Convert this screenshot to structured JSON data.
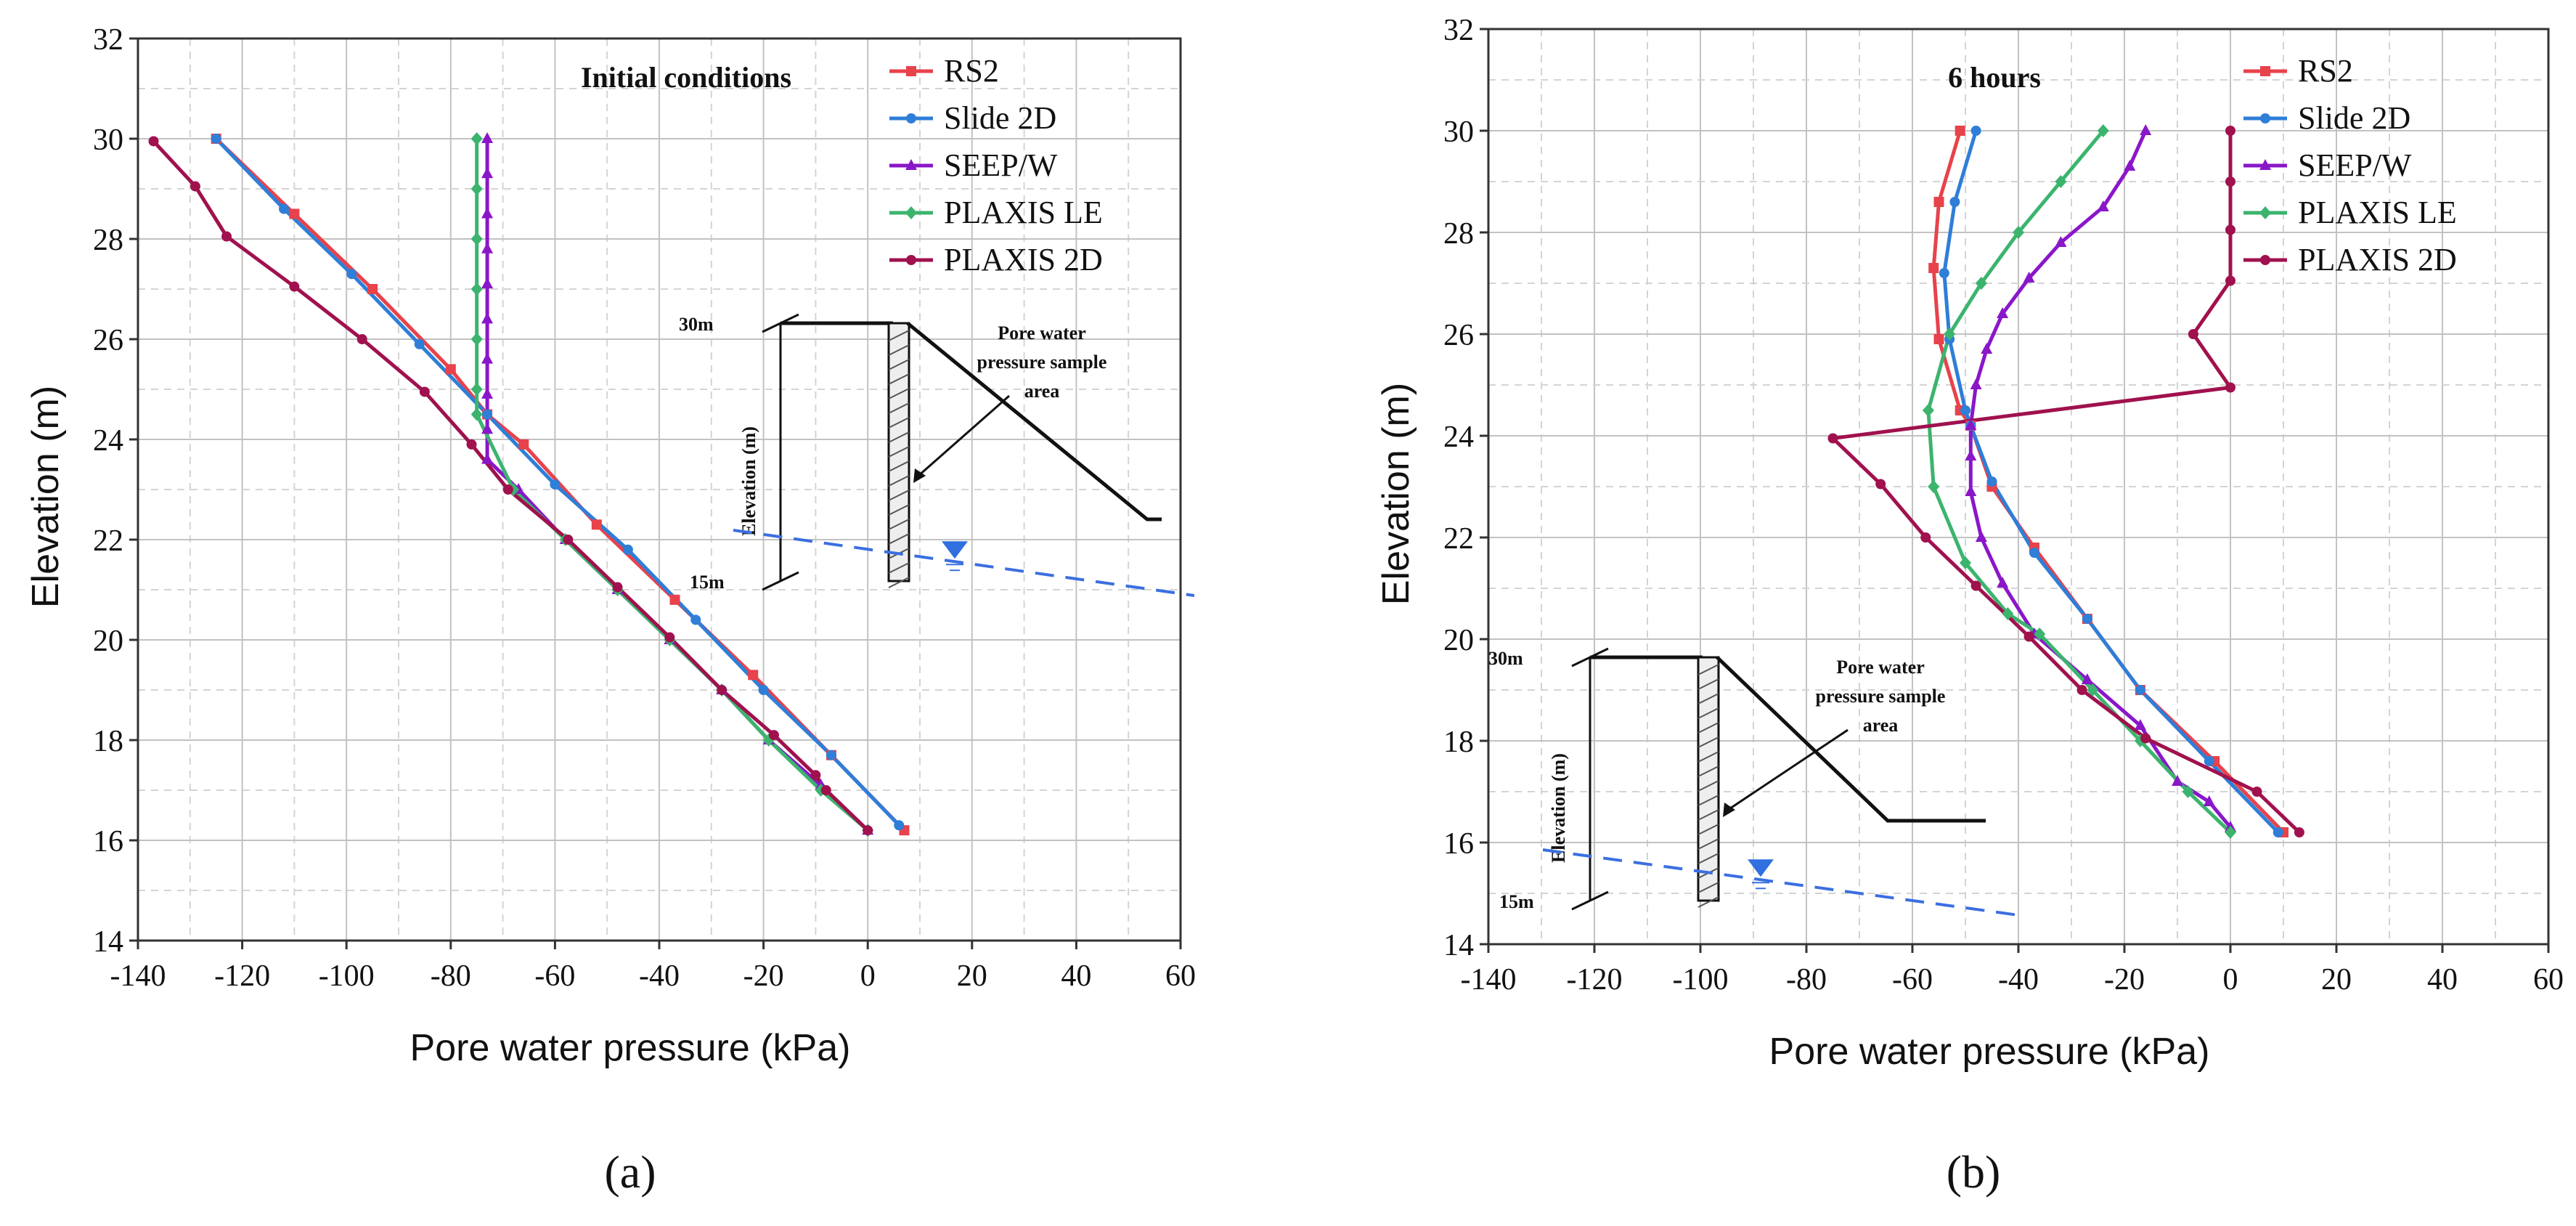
{
  "figure": {
    "panel_a_label": "(a)",
    "panel_b_label": "(b)"
  },
  "inset": {
    "top_label": "30m",
    "bottom_label": "15m",
    "axis_label": "Elevation (m)",
    "annotation_lines": [
      "Pore water",
      "pressure sample",
      "area"
    ]
  },
  "colors": {
    "RS2": "#e8424b",
    "Slide 2D": "#2f7ed8",
    "SEEP/W": "#8a16c9",
    "PLAXIS LE": "#3cb46e",
    "PLAXIS 2D": "#a0114e"
  },
  "chart_data": [
    {
      "type": "line",
      "title": "Initial conditions",
      "xlabel": "Pore water pressure (kPa)",
      "ylabel": "Elevation (m)",
      "xlim": [
        -140,
        60
      ],
      "ylim": [
        14,
        32
      ],
      "xticks": [
        -140,
        -120,
        -100,
        -80,
        -60,
        -40,
        -20,
        0,
        20,
        40,
        60
      ],
      "yticks": [
        14,
        16,
        18,
        20,
        22,
        24,
        26,
        28,
        30,
        32
      ],
      "series": [
        {
          "name": "RS2",
          "marker": "square",
          "color": "#e8424b",
          "points": [
            [
              -125,
              30
            ],
            [
              -110,
              28.5
            ],
            [
              -95,
              27
            ],
            [
              -80,
              25.4
            ],
            [
              -73,
              24.5
            ],
            [
              -66,
              23.9
            ],
            [
              -52,
              22.3
            ],
            [
              -37,
              20.8
            ],
            [
              -22,
              19.3
            ],
            [
              -7,
              17.7
            ],
            [
              7,
              16.2
            ]
          ]
        },
        {
          "name": "Slide 2D",
          "marker": "circle",
          "color": "#2f7ed8",
          "points": [
            [
              -125,
              30
            ],
            [
              -112,
              28.6
            ],
            [
              -99,
              27.3
            ],
            [
              -86,
              25.9
            ],
            [
              -73,
              24.5
            ],
            [
              -60,
              23.1
            ],
            [
              -46,
              21.8
            ],
            [
              -33,
              20.4
            ],
            [
              -20,
              19
            ],
            [
              -7,
              17.7
            ],
            [
              6,
              16.3
            ]
          ]
        },
        {
          "name": "SEEP/W",
          "marker": "triangle",
          "color": "#8a16c9",
          "points": [
            [
              -73,
              30
            ],
            [
              -73,
              29.3
            ],
            [
              -73,
              28.5
            ],
            [
              -73,
              27.8
            ],
            [
              -73,
              27.1
            ],
            [
              -73,
              26.4
            ],
            [
              -73,
              25.6
            ],
            [
              -73,
              24.9
            ],
            [
              -73,
              24.2
            ],
            [
              -73,
              23.6
            ],
            [
              -67,
              23
            ],
            [
              -58,
              22
            ],
            [
              -48,
              21
            ],
            [
              -38,
              20
            ],
            [
              -28,
              19
            ],
            [
              -19,
              18
            ],
            [
              -9,
              17.1
            ],
            [
              0,
              16.2
            ]
          ]
        },
        {
          "name": "PLAXIS LE",
          "marker": "diamond",
          "color": "#3cb46e",
          "points": [
            [
              -75,
              30
            ],
            [
              -75,
              29
            ],
            [
              -75,
              28
            ],
            [
              -75,
              27
            ],
            [
              -75,
              26
            ],
            [
              -75,
              25
            ],
            [
              -75,
              24.5
            ],
            [
              -68,
              23
            ],
            [
              -58,
              22
            ],
            [
              -48,
              21
            ],
            [
              -38,
              20
            ],
            [
              -28,
              19
            ],
            [
              -19,
              18
            ],
            [
              -9,
              17
            ],
            [
              0,
              16.2
            ]
          ]
        },
        {
          "name": "PLAXIS 2D",
          "marker": "circle",
          "color": "#a0114e",
          "points": [
            [
              -137,
              29.95
            ],
            [
              -129,
              29.05
            ],
            [
              -123,
              28.05
            ],
            [
              -110,
              27.05
            ],
            [
              -97,
              26
            ],
            [
              -85,
              24.95
            ],
            [
              -76,
              23.9
            ],
            [
              -69,
              23
            ],
            [
              -57.5,
              22
            ],
            [
              -48,
              21.05
            ],
            [
              -38,
              20.05
            ],
            [
              -28,
              19
            ],
            [
              -18,
              18.1
            ],
            [
              -10,
              17.3
            ],
            [
              -8,
              17
            ],
            [
              0,
              16.2
            ]
          ]
        }
      ]
    },
    {
      "type": "line",
      "title": "6 hours",
      "xlabel": "Pore water pressure (kPa)",
      "ylabel": "Elevation (m)",
      "xlim": [
        -140,
        60
      ],
      "ylim": [
        14,
        32
      ],
      "xticks": [
        -140,
        -120,
        -100,
        -80,
        -60,
        -40,
        -20,
        0,
        20,
        40,
        60
      ],
      "yticks": [
        14,
        16,
        18,
        20,
        22,
        24,
        26,
        28,
        30,
        32
      ],
      "series": [
        {
          "name": "RS2",
          "marker": "square",
          "color": "#e8424b",
          "points": [
            [
              -51,
              30
            ],
            [
              -55,
              28.6
            ],
            [
              -56,
              27.3
            ],
            [
              -55,
              25.9
            ],
            [
              -51,
              24.5
            ],
            [
              -49,
              24.2
            ],
            [
              -45,
              23
            ],
            [
              -37,
              21.8
            ],
            [
              -27,
              20.4
            ],
            [
              -17,
              19
            ],
            [
              -3,
              17.6
            ],
            [
              10,
              16.2
            ]
          ]
        },
        {
          "name": "Slide 2D",
          "marker": "circle",
          "color": "#2f7ed8",
          "points": [
            [
              -48,
              30
            ],
            [
              -52,
              28.6
            ],
            [
              -54,
              27.2
            ],
            [
              -53,
              25.9
            ],
            [
              -50,
              24.5
            ],
            [
              -49,
              24.2
            ],
            [
              -45,
              23.1
            ],
            [
              -37,
              21.7
            ],
            [
              -27,
              20.4
            ],
            [
              -17,
              19
            ],
            [
              -4,
              17.6
            ],
            [
              9,
              16.2
            ]
          ]
        },
        {
          "name": "SEEP/W",
          "marker": "triangle",
          "color": "#8a16c9",
          "points": [
            [
              -16,
              30
            ],
            [
              -19,
              29.3
            ],
            [
              -24,
              28.5
            ],
            [
              -32,
              27.8
            ],
            [
              -38,
              27.1
            ],
            [
              -43,
              26.4
            ],
            [
              -46,
              25.7
            ],
            [
              -48,
              25
            ],
            [
              -49,
              24.2
            ],
            [
              -49,
              23.6
            ],
            [
              -49,
              22.9
            ],
            [
              -47,
              22
            ],
            [
              -43,
              21.1
            ],
            [
              -37,
              20.1
            ],
            [
              -27,
              19.2
            ],
            [
              -17,
              18.3
            ],
            [
              -10,
              17.2
            ],
            [
              -4,
              16.8
            ],
            [
              0,
              16.3
            ]
          ]
        },
        {
          "name": "PLAXIS LE",
          "marker": "diamond",
          "color": "#3cb46e",
          "points": [
            [
              -24,
              30
            ],
            [
              -32,
              29
            ],
            [
              -40,
              28
            ],
            [
              -47,
              27
            ],
            [
              -53,
              26
            ],
            [
              -57,
              24.5
            ],
            [
              -56,
              23
            ],
            [
              -50,
              21.5
            ],
            [
              -42,
              20.5
            ],
            [
              -36,
              20.1
            ],
            [
              -26,
              19
            ],
            [
              -17,
              18
            ],
            [
              -8,
              17
            ],
            [
              0,
              16.2
            ]
          ]
        },
        {
          "name": "PLAXIS 2D",
          "marker": "circle",
          "color": "#a0114e",
          "points": [
            [
              0,
              30
            ],
            [
              0,
              29
            ],
            [
              0,
              28.05
            ],
            [
              0,
              27.05
            ],
            [
              -7,
              26
            ],
            [
              0,
              24.95
            ],
            [
              -75,
              23.95
            ],
            [
              -66,
              23.05
            ],
            [
              -57.5,
              22
            ],
            [
              -48,
              21.05
            ],
            [
              -38,
              20.05
            ],
            [
              -28,
              19
            ],
            [
              -16,
              18.05
            ],
            [
              5,
              17
            ],
            [
              13,
              16.2
            ]
          ]
        }
      ]
    }
  ]
}
